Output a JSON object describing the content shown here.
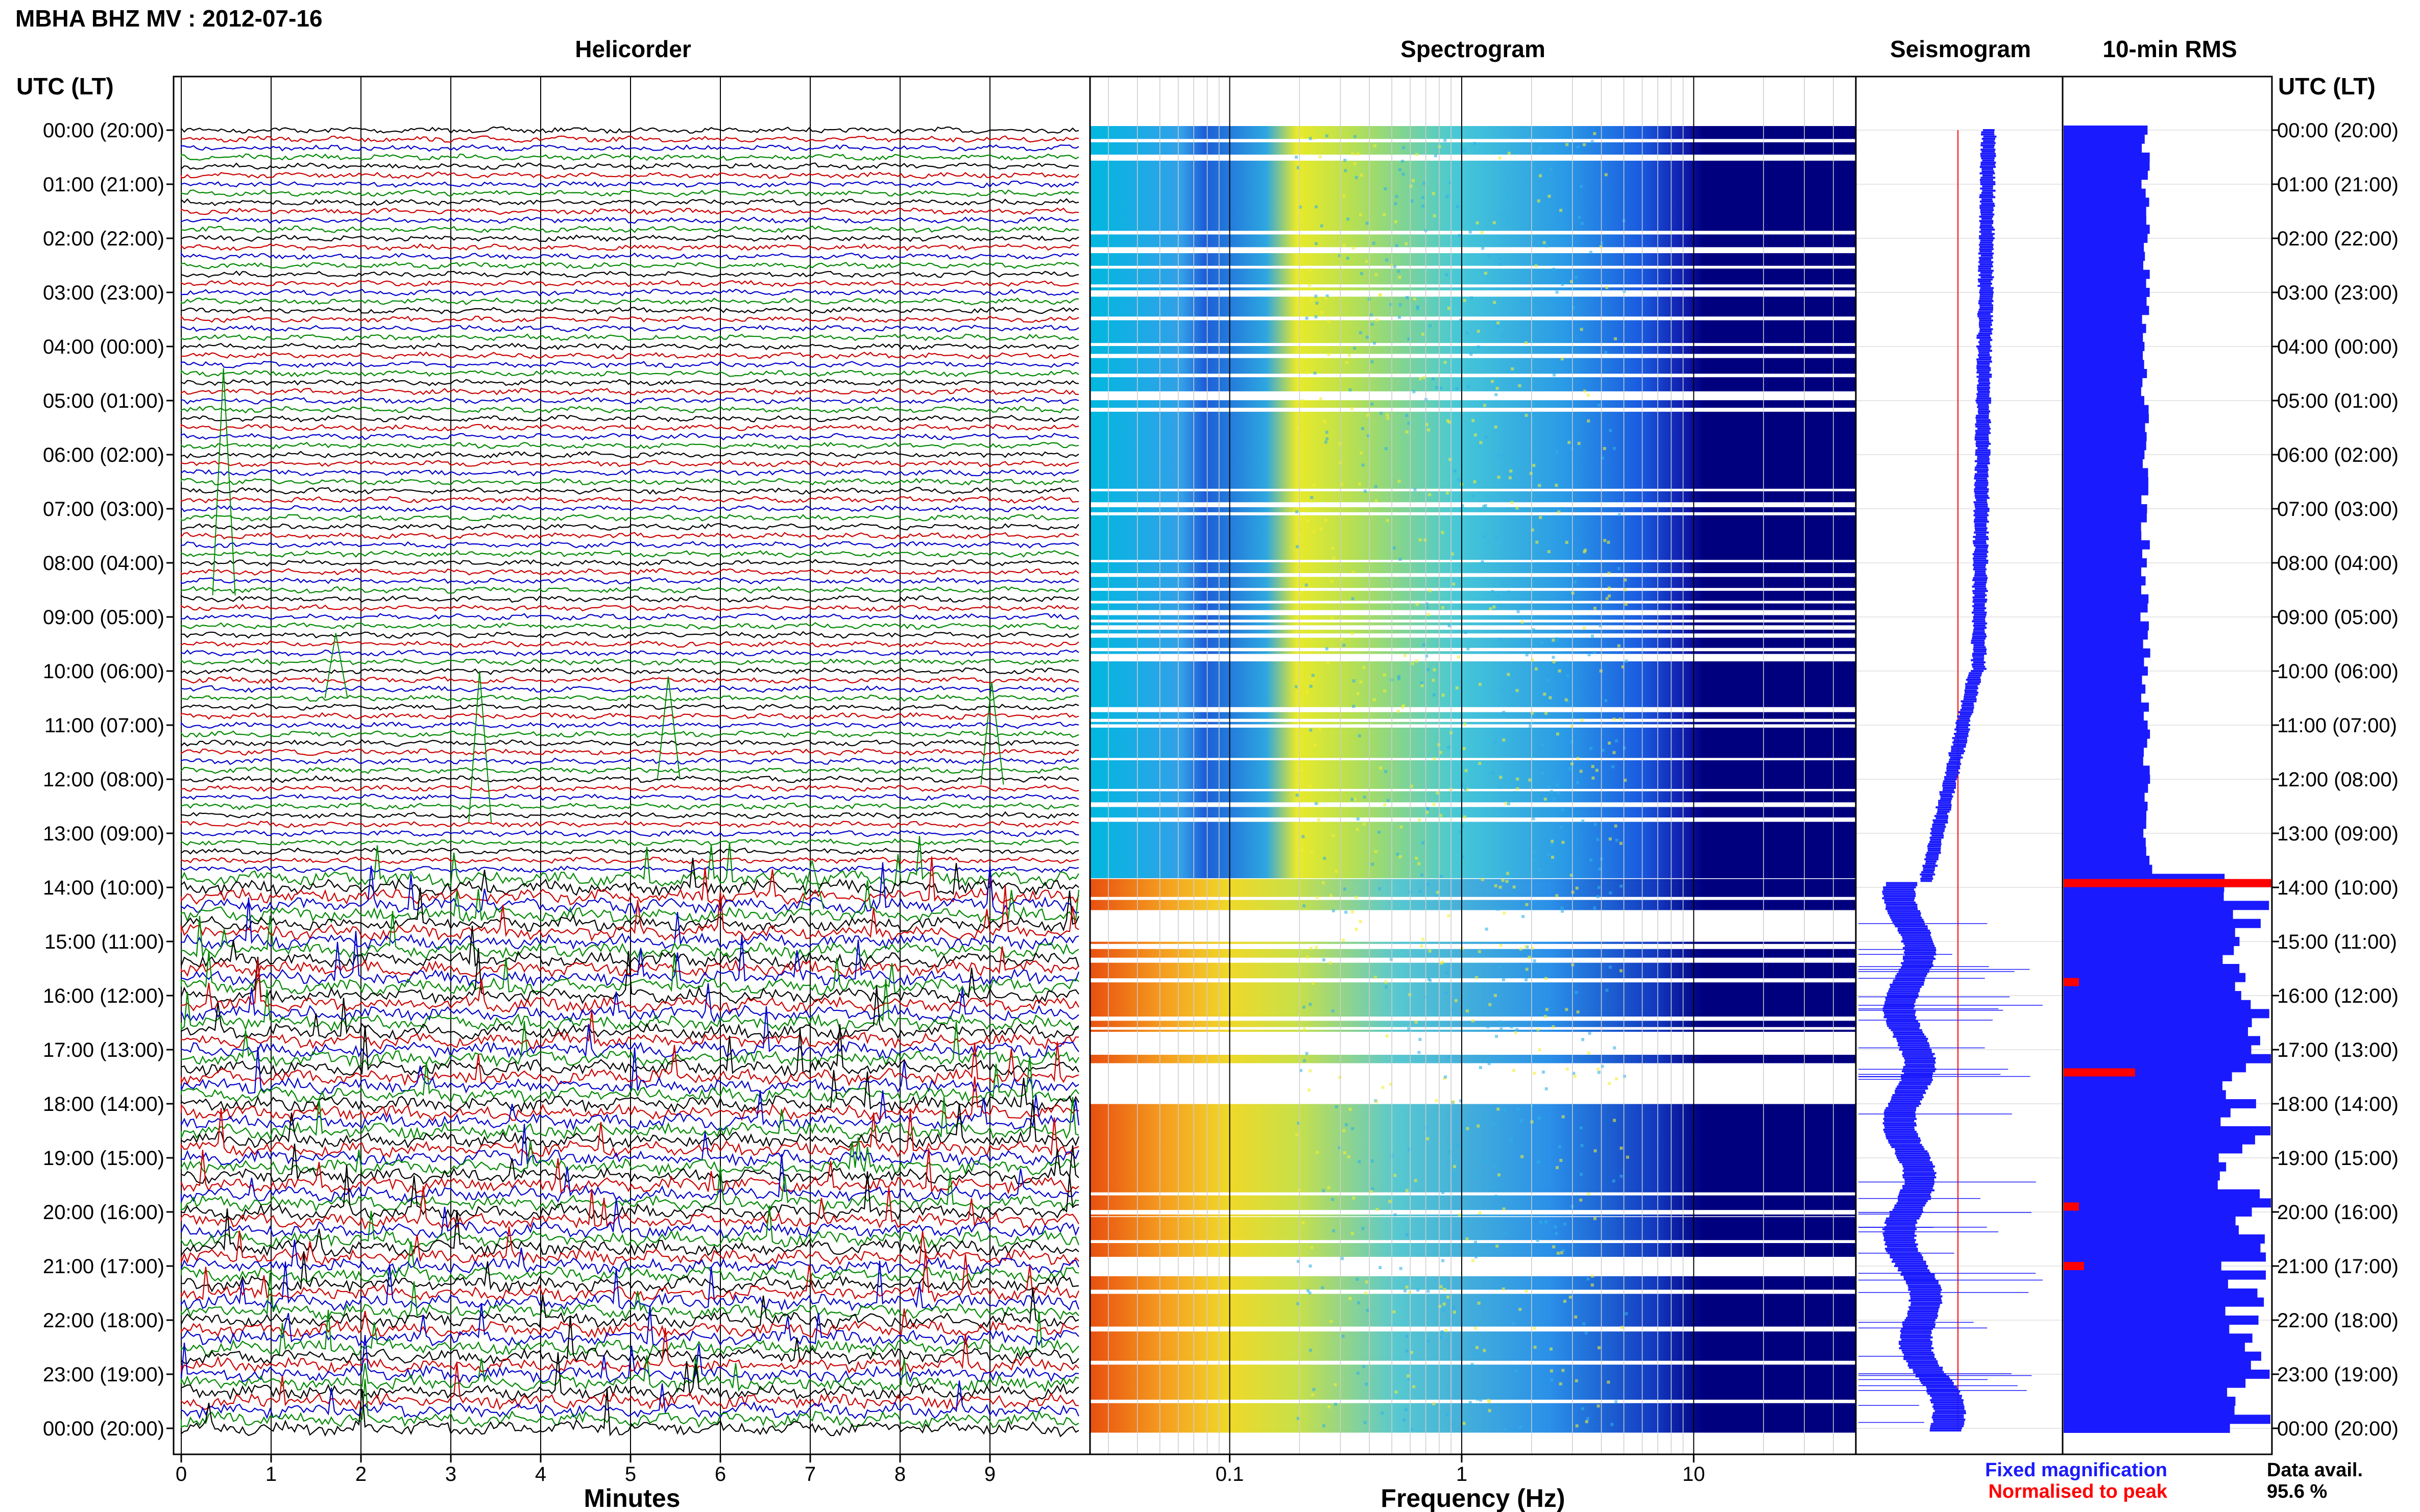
{
  "figure": {
    "title": "MBHA BHZ MV : 2012-07-16",
    "utc_header_left": "UTC (LT)",
    "utc_header_right": "UTC (LT)"
  },
  "panels": {
    "helicorder": "Helicorder",
    "spectrogram": "Spectrogram",
    "seismogram": "Seismogram",
    "rms": "10-min RMS"
  },
  "footer": {
    "minutes_label": "Minutes",
    "frequency_label": "Frequency (Hz)",
    "fixed_magnification": "Fixed magnification",
    "normalised_to_peak": "Normalised to peak",
    "data_avail_label": "Data avail.",
    "data_avail_value": "95.6 %"
  },
  "colors": {
    "fixed": "#1a1aff",
    "normalised": "#ff0000",
    "spectro_high": "#e03010",
    "spectro_low": "#00007f"
  },
  "chart_data": [
    {
      "type": "line",
      "panel": "helicorder",
      "xlabel": "Minutes",
      "x_ticks": [
        0,
        1,
        2,
        3,
        4,
        5,
        6,
        7,
        8,
        9
      ],
      "xlim": [
        0,
        10
      ],
      "trace_interval_min": 10,
      "trace_colors": [
        "#000000",
        "#cc0000",
        "#0000cc",
        "#008800"
      ],
      "quiet_until_utc": "13:50",
      "y_ticks": [
        "00:00 (20:00)",
        "01:00 (21:00)",
        "02:00 (22:00)",
        "03:00 (23:00)",
        "04:00 (00:00)",
        "05:00 (01:00)",
        "06:00 (02:00)",
        "07:00 (03:00)",
        "08:00 (04:00)",
        "09:00 (05:00)",
        "10:00 (06:00)",
        "11:00 (07:00)",
        "12:00 (08:00)",
        "13:00 (09:00)",
        "14:00 (10:00)",
        "15:00 (11:00)",
        "16:00 (12:00)",
        "17:00 (13:00)",
        "18:00 (14:00)",
        "19:00 (15:00)",
        "20:00 (16:00)",
        "21:00 (17:00)",
        "22:00 (18:00)",
        "23:00 (19:00)",
        "00:00 (20:00)"
      ]
    },
    {
      "type": "heatmap",
      "panel": "spectrogram",
      "xlabel": "Frequency (Hz)",
      "x_scale": "log",
      "xlim": [
        0.025,
        50
      ],
      "x_ticks": [
        0.1,
        1,
        10
      ],
      "gaps_utc": [
        [
          "13:50",
          "13:55"
        ],
        [
          "14:25",
          "15:05"
        ],
        [
          "16:40",
          "17:10"
        ],
        [
          "17:15",
          "18:05"
        ],
        [
          "20:05",
          "20:10"
        ],
        [
          "20:50",
          "21:15"
        ]
      ]
    },
    {
      "type": "line",
      "panel": "seismogram",
      "series": [
        {
          "name": "Fixed magnification",
          "color": "#1a1aff"
        },
        {
          "name": "Normalised to peak",
          "color": "#ff0000"
        }
      ]
    },
    {
      "type": "bar",
      "panel": "rms",
      "title": "10-min RMS",
      "note": "horizontal bars per 10-min interval, blue fill; red marks highlight peak intervals near 13:50, 17:40, 21:00 UTC"
    }
  ]
}
